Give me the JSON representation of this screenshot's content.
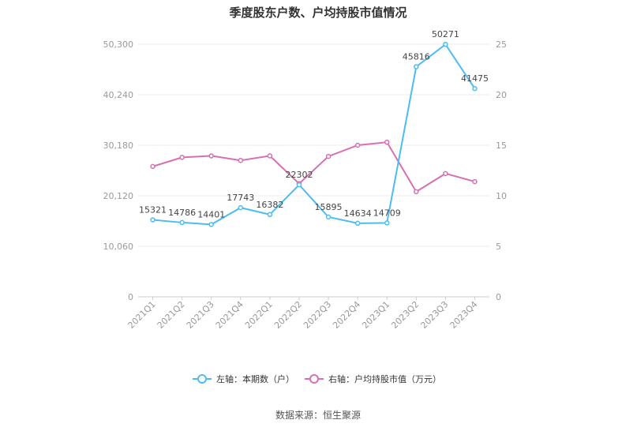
{
  "chart_data": {
    "type": "line",
    "title": "季度股东户数、户均持股市值情况",
    "categories": [
      "2021Q1",
      "2021Q2",
      "2021Q3",
      "2021Q4",
      "2022Q1",
      "2022Q2",
      "2022Q3",
      "2022Q4",
      "2023Q1",
      "2023Q2",
      "2023Q3",
      "2023Q4"
    ],
    "left_axis": {
      "min": 0,
      "max": 50300,
      "ticks": [
        "0",
        "10,060",
        "20,120",
        "30,180",
        "40,240",
        "50,300"
      ],
      "tick_values": [
        0,
        10060,
        20120,
        30180,
        40240,
        50300
      ]
    },
    "right_axis": {
      "min": 0,
      "max": 25,
      "ticks": [
        "0",
        "5",
        "10",
        "15",
        "20",
        "25"
      ],
      "tick_values": [
        0,
        5,
        10,
        15,
        20,
        25
      ]
    },
    "series": [
      {
        "name": "左轴：本期数（户）",
        "axis": "left",
        "color": "#4dbdf0",
        "values": [
          15321,
          14786,
          14401,
          17743,
          16382,
          22302,
          15895,
          14634,
          14709,
          45816,
          50271,
          41475
        ],
        "labels": [
          "15321",
          "14786",
          "14401",
          "17743",
          "16382",
          "22302",
          "15895",
          "14634",
          "14709",
          "45816",
          "50271",
          "41475"
        ]
      },
      {
        "name": "右轴：户均持股市值（万元）",
        "axis": "right",
        "color": "#d770b0",
        "values": [
          12.9,
          13.8,
          13.95,
          13.5,
          13.95,
          11.2,
          13.9,
          15.0,
          15.3,
          10.4,
          12.2,
          11.4
        ]
      }
    ],
    "grid": true,
    "legend_position": "bottom"
  },
  "footer": {
    "source": "数据来源：恒生聚源"
  }
}
